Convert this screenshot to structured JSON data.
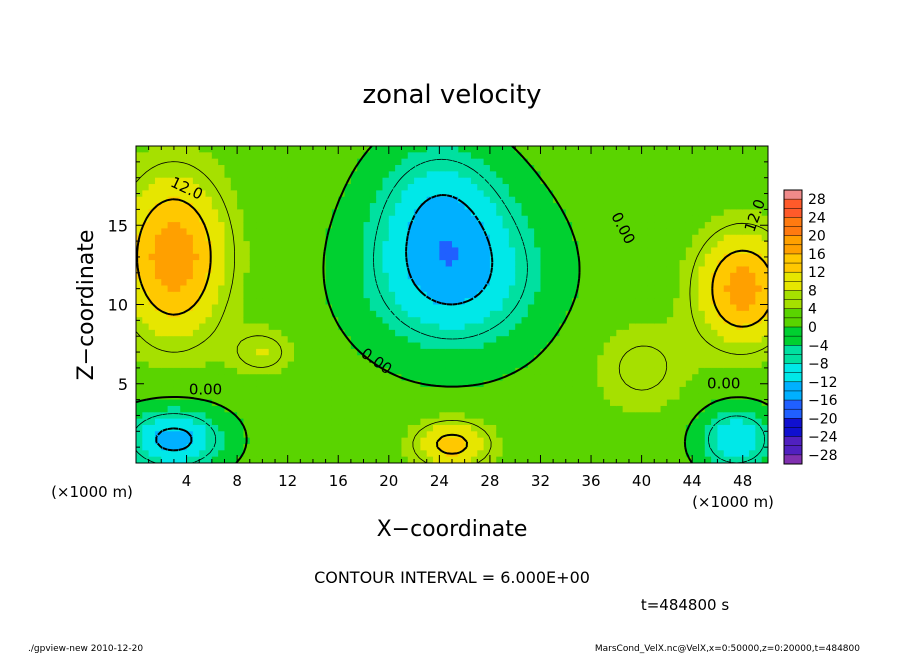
{
  "chart_data": {
    "type": "heatmap",
    "title": "zonal velocity",
    "xlabel": "X−coordinate",
    "ylabel": "Z−coordinate",
    "x_unit_left": "(×1000 m)",
    "x_unit_right": "(×1000 m)",
    "xlim": [
      0,
      50
    ],
    "ylim": [
      0,
      20
    ],
    "x_ticks": [
      "4",
      "8",
      "12",
      "16",
      "20",
      "24",
      "28",
      "32",
      "36",
      "40",
      "44",
      "48"
    ],
    "y_ticks": [
      "5",
      "10",
      "15"
    ],
    "x_tick_values": [
      4,
      8,
      12,
      16,
      20,
      24,
      28,
      32,
      36,
      40,
      44,
      48
    ],
    "y_tick_values": [
      5,
      10,
      15
    ],
    "colorbar": {
      "labels": [
        "28",
        "24",
        "20",
        "16",
        "12",
        "8",
        "4",
        "0",
        "−4",
        "−8",
        "−12",
        "−16",
        "−20",
        "−24",
        "−28"
      ],
      "bins": [
        {
          "lo": 28,
          "hi": 30,
          "color": "#f08a8a"
        },
        {
          "lo": 24,
          "hi": 28,
          "color": "#ff5a2a"
        },
        {
          "lo": 20,
          "hi": 24,
          "color": "#ff7a10"
        },
        {
          "lo": 16,
          "hi": 20,
          "color": "#ffa000"
        },
        {
          "lo": 12,
          "hi": 16,
          "color": "#ffc800"
        },
        {
          "lo": 8,
          "hi": 12,
          "color": "#e6e600"
        },
        {
          "lo": 4,
          "hi": 8,
          "color": "#a6e000"
        },
        {
          "lo": 0,
          "hi": 4,
          "color": "#5ad400"
        },
        {
          "lo": -4,
          "hi": 0,
          "color": "#00d030"
        },
        {
          "lo": -8,
          "hi": -4,
          "color": "#00e0a0"
        },
        {
          "lo": -12,
          "hi": -8,
          "color": "#00e8e8"
        },
        {
          "lo": -16,
          "hi": -12,
          "color": "#00b0ff"
        },
        {
          "lo": -20,
          "hi": -16,
          "color": "#2060ff"
        },
        {
          "lo": -24,
          "hi": -20,
          "color": "#1010d0"
        },
        {
          "lo": -28,
          "hi": -24,
          "color": "#5020c0"
        },
        {
          "lo": -30,
          "hi": -28,
          "color": "#8030b0"
        }
      ]
    },
    "field_sources": [
      {
        "x": 3,
        "z": 13,
        "value": 17,
        "sx": 4,
        "sz": 5
      },
      {
        "x": 48,
        "z": 11,
        "value": 16,
        "sx": 3.5,
        "sz": 3.5
      },
      {
        "x": 25,
        "z": 12,
        "value": -16,
        "sx": 7,
        "sz": 5
      },
      {
        "x": 24,
        "z": 17,
        "value": -8,
        "sx": 5,
        "sz": 4
      },
      {
        "x": 3,
        "z": 1.5,
        "value": -16,
        "sx": 4,
        "sz": 2
      },
      {
        "x": 47.5,
        "z": 1.5,
        "value": -14,
        "sx": 3,
        "sz": 2
      },
      {
        "x": 25,
        "z": 1.2,
        "value": 12,
        "sx": 3,
        "sz": 1.5
      },
      {
        "x": 10,
        "z": 7,
        "value": 6,
        "sx": 2.5,
        "sz": 1.5
      },
      {
        "x": 40,
        "z": 6,
        "value": 5,
        "sx": 4,
        "sz": 3
      }
    ],
    "field_base": 2,
    "contour_labels": [
      {
        "text": "12.0",
        "x": 4,
        "z": 17.3,
        "angle": 25
      },
      {
        "text": "12.0",
        "x": 49,
        "z": 15.6,
        "angle": -70
      },
      {
        "text": "0.00",
        "x": 38.5,
        "z": 14.8,
        "angle": 62
      },
      {
        "text": "0.00",
        "x": 19,
        "z": 6.4,
        "angle": 35
      },
      {
        "text": "0.00",
        "x": 5.5,
        "z": 4.6,
        "angle": 0
      },
      {
        "text": "0.00",
        "x": 46.5,
        "z": 5.0,
        "angle": 0
      }
    ],
    "contour_interval_text": "CONTOUR INTERVAL = 6.000E+00",
    "time_text": "t=484800 s"
  },
  "footer": {
    "left": "./gpview-new  2010-12-20",
    "right": "MarsCond_VelX.nc@VelX,x=0:50000,z=0:20000,t=484800"
  }
}
